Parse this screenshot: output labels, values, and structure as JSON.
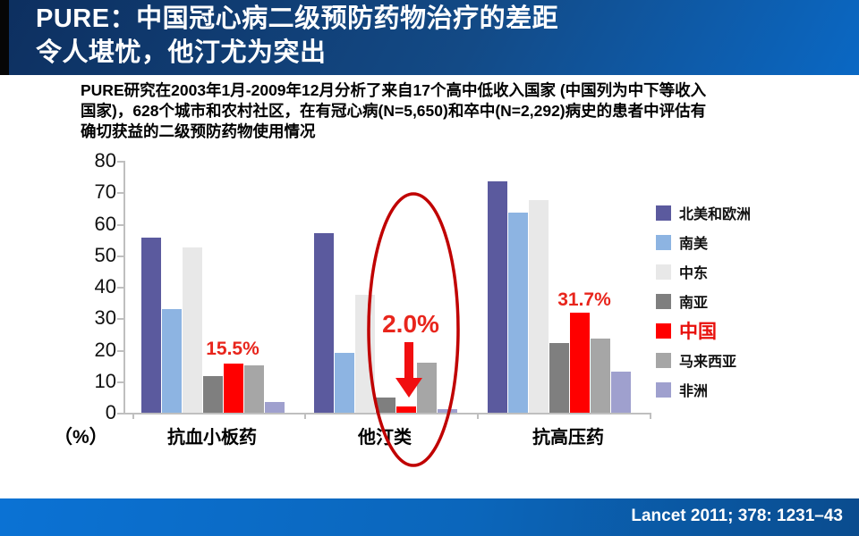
{
  "header": {
    "title_line1": "PURE：中国冠心病二级预防药物治疗的差距",
    "title_line2": "令人堪忧，他汀尤为突出"
  },
  "intro": {
    "lines": [
      "PURE研究在2003年1月-2009年12月分析了来自17个高中低收入国家 (中国列为中下等收入",
      "国家)，628个城市和农村社区，在有冠心病(N=5,650)和卒中(N=2,292)病史的患者中评估有",
      "确切获益的二级预防药物使用情况"
    ]
  },
  "chart_data": {
    "type": "bar",
    "title": "",
    "categories": [
      "抗血小板药",
      "他汀类",
      "抗高压药"
    ],
    "unit_label": "（%）",
    "ylabel": "（%）",
    "ylim": [
      0,
      80
    ],
    "ytick_step": 10,
    "grid": false,
    "legend_position": "right",
    "series": [
      {
        "name": "北美和欧洲",
        "color": "#5b5a9e",
        "values": [
          55.5,
          57.0,
          73.5
        ]
      },
      {
        "name": "南美",
        "color": "#8db4e2",
        "values": [
          33.0,
          19.0,
          63.5
        ]
      },
      {
        "name": "中东",
        "color": "#e8e8e8",
        "values": [
          52.5,
          37.5,
          67.5
        ]
      },
      {
        "name": "南亚",
        "color": "#7f7f7f",
        "values": [
          11.5,
          4.8,
          22.0
        ]
      },
      {
        "name": "中国",
        "color": "#ff0000",
        "values": [
          15.5,
          2.0,
          31.7
        ],
        "highlight": true
      },
      {
        "name": "马来西亚",
        "color": "#a6a6a6",
        "values": [
          15.0,
          15.8,
          23.5
        ]
      },
      {
        "name": "非洲",
        "color": "#9fa0ce",
        "values": [
          3.5,
          1.2,
          13.0
        ]
      }
    ],
    "annotations": [
      {
        "text": "15.5%",
        "category": "抗血小板药",
        "series": "中国"
      },
      {
        "text": "2.0%",
        "category": "他汀类",
        "series": "中国",
        "emphasis": "red-ellipse-and-arrow"
      },
      {
        "text": "31.7%",
        "category": "抗高压药",
        "series": "中国"
      }
    ]
  },
  "footer": {
    "citation": "Lancet 2011; 378: 1231–43"
  },
  "colors": {
    "header_blue_dark": "#0d2f5f",
    "header_blue_bright": "#0a68c4",
    "highlight_bar_red": "#ff0000",
    "ellipse_red": "#c00000",
    "annotation_label_red": "#e8251c",
    "axis_gray": "#bfbfbf"
  }
}
